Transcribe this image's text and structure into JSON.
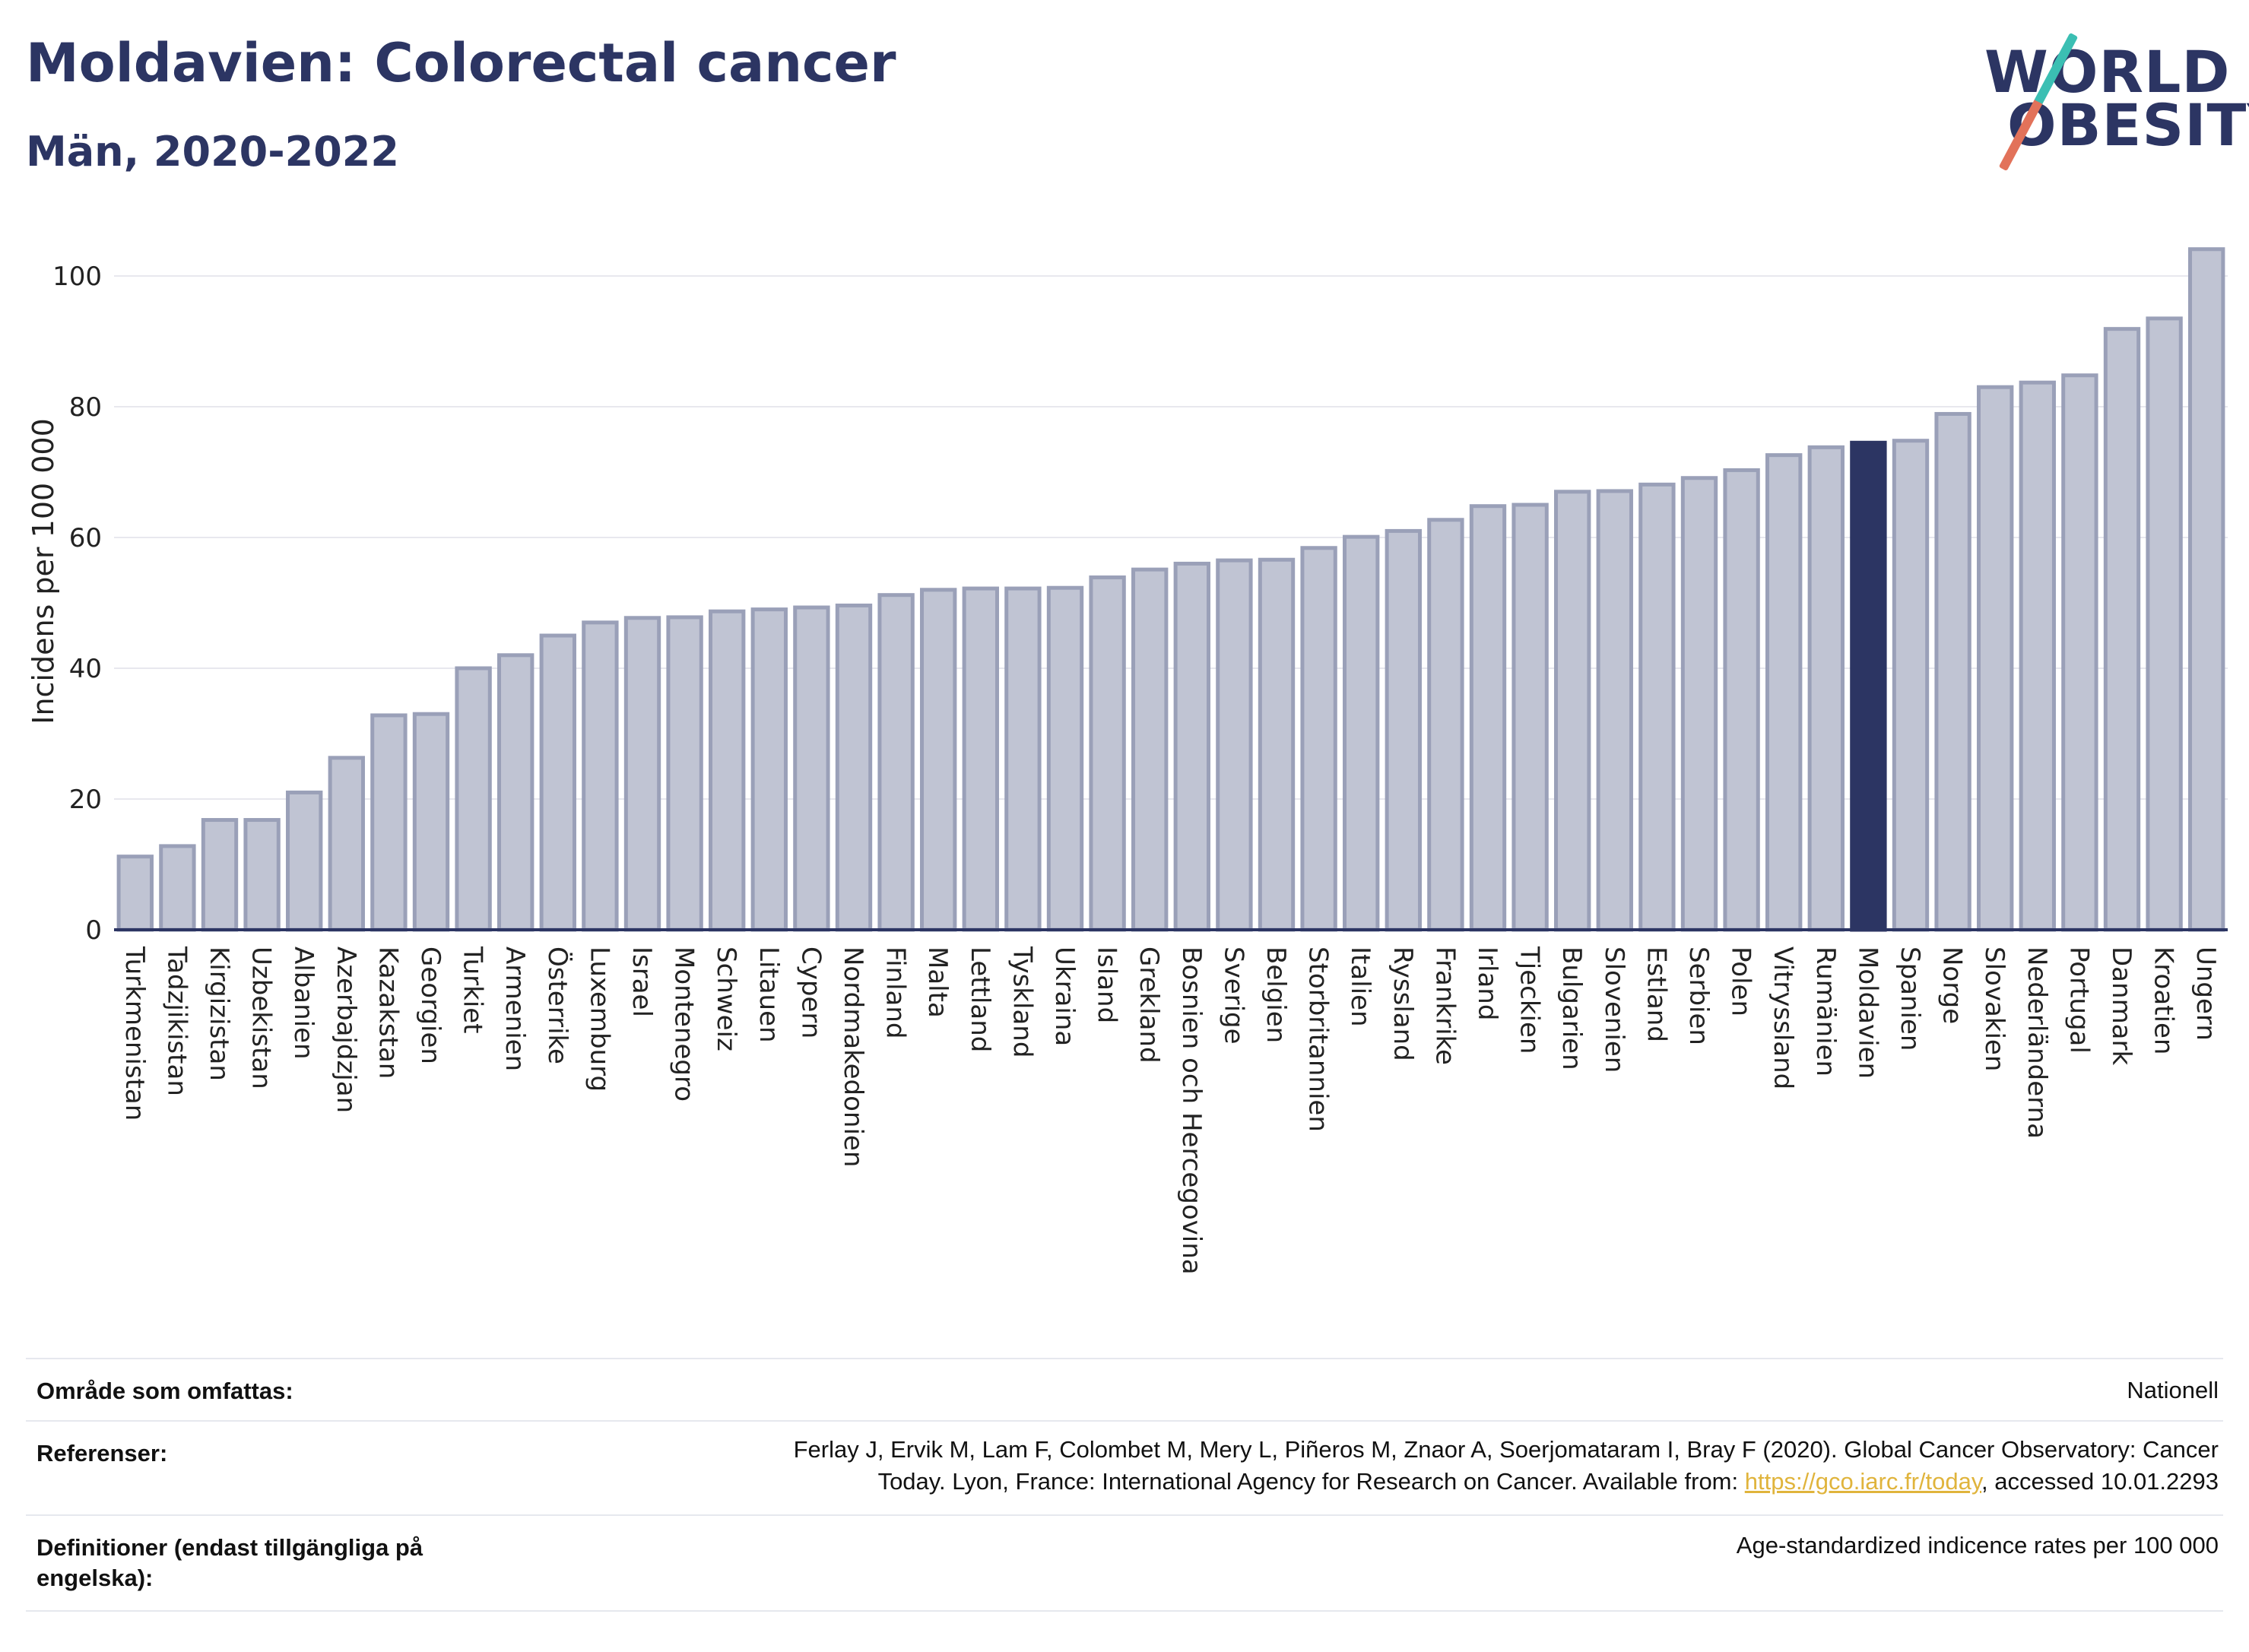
{
  "header": {
    "title": "Moldavien: Colorectal cancer",
    "subtitle": "Män, 2020-2022"
  },
  "logo": {
    "line1": "WORLD",
    "line2": "OBESITY",
    "accent_top": "#3bbfb3",
    "accent_bottom": "#e2725a"
  },
  "colors": {
    "bar": "#c0c4d3",
    "bar_border": "#9aa0b8",
    "highlight": "#2c3563",
    "grid": "#e8e8ee",
    "text": "#2c3563"
  },
  "chart_data": {
    "type": "bar",
    "ylabel": "Incidens per 100 000",
    "ylim": [
      0,
      105
    ],
    "yticks": [
      0,
      20,
      40,
      60,
      80,
      100
    ],
    "grid": true,
    "highlight": "Moldavien",
    "categories": [
      "Turkmenistan",
      "Tadzjikistan",
      "Kirgizistan",
      "Uzbekistan",
      "Albanien",
      "Azerbajdzjan",
      "Kazakstan",
      "Georgien",
      "Turkiet",
      "Armenien",
      "Österrike",
      "Luxemburg",
      "Israel",
      "Montenegro",
      "Schweiz",
      "Litauen",
      "Cypern",
      "Nordmakedonien",
      "Finland",
      "Malta",
      "Lettland",
      "Tyskland",
      "Ukraina",
      "Island",
      "Grekland",
      "Bosnien och Hercegovina",
      "Sverige",
      "Belgien",
      "Storbritannien",
      "Italien",
      "Ryssland",
      "Frankrike",
      "Irland",
      "Tjeckien",
      "Bulgarien",
      "Slovenien",
      "Estland",
      "Serbien",
      "Polen",
      "Vitryssland",
      "Rumänien",
      "Moldavien",
      "Spanien",
      "Norge",
      "Slovakien",
      "Nederländerna",
      "Portugal",
      "Danmark",
      "Kroatien",
      "Ungern"
    ],
    "values": [
      11.2,
      12.8,
      16.8,
      16.8,
      21.0,
      26.3,
      32.8,
      33.0,
      40.0,
      42.0,
      45.0,
      47.0,
      47.7,
      47.8,
      48.7,
      49.0,
      49.3,
      49.6,
      51.2,
      52.0,
      52.2,
      52.2,
      52.3,
      53.9,
      55.1,
      56.0,
      56.5,
      56.6,
      58.4,
      60.1,
      61.0,
      62.7,
      64.8,
      65.0,
      67.0,
      67.1,
      68.1,
      69.1,
      70.3,
      72.6,
      73.8,
      74.5,
      74.8,
      78.9,
      83.0,
      83.7,
      84.8,
      91.9,
      93.5,
      104.1
    ]
  },
  "info": {
    "coverage_label": "Område som omfattas:",
    "coverage_value": "Nationell",
    "references_label": "Referenser:",
    "references_line1": "Ferlay J, Ervik M, Lam F, Colombet M, Mery L, Piñeros M, Znaor A, Soerjomataram I, Bray F (2020). Global Cancer Observatory: Cancer",
    "references_line2_pre": "Today. Lyon, France: International Agency for Research on Cancer. Available from: ",
    "references_link": "https://gco.iarc.fr/today",
    "references_line2_post": ", accessed 10.01.2293",
    "definitions_label_1": "Definitioner (endast tillgängliga på",
    "definitions_label_2": "engelska):",
    "definitions_value": "Age-standardized indicence rates per 100 000"
  }
}
